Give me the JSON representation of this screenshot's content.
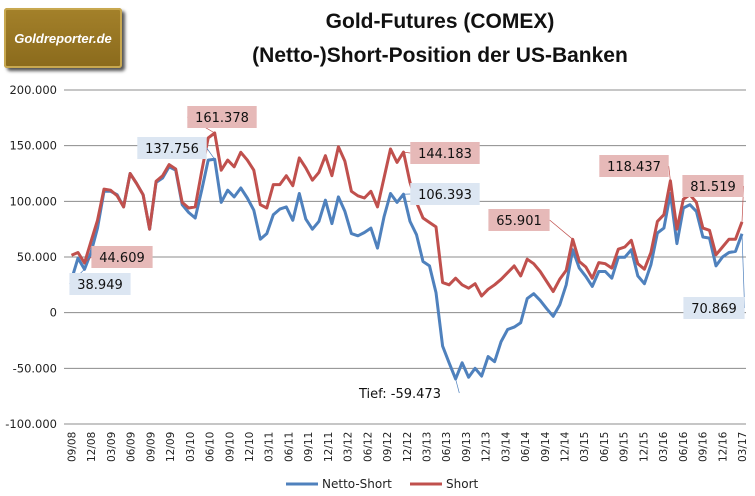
{
  "logo_text": "Goldreporter.de",
  "chart_data": {
    "type": "line",
    "title": [
      "Gold-Futures (COMEX)",
      "(Netto-)Short-Position der US-Banken"
    ],
    "xlabel": "",
    "ylabel": "",
    "ylim": [
      -100000,
      200000
    ],
    "yticks": [
      -100000,
      -50000,
      0,
      50000,
      100000,
      150000,
      200000
    ],
    "ytick_labels": [
      "-100.000",
      "-50.000",
      "0",
      "50.000",
      "100.000",
      "150.000",
      "200.000"
    ],
    "grid": true,
    "legend_position": "bottom",
    "x_tick_labels": [
      "09/08",
      "12/08",
      "03/09",
      "06/09",
      "09/09",
      "12/09",
      "03/10",
      "06/10",
      "09/10",
      "12/10",
      "03/11",
      "06/11",
      "09/11",
      "12/11",
      "03/12",
      "06/12",
      "09/12",
      "12/12",
      "03/13",
      "06/13",
      "09/13",
      "12/13",
      "03/14",
      "06/14",
      "09/14",
      "12/14",
      "03/15",
      "06/15",
      "09/15",
      "12/15",
      "03/16",
      "06/16",
      "09/16",
      "12/16",
      "03/17"
    ],
    "series": [
      {
        "name": "Netto-Short",
        "color": "#4f81bd",
        "values": [
          29600,
          49000,
          38949,
          54000,
          76000,
          109000,
          109000,
          106000,
          95000,
          125000,
          116000,
          106000,
          75000,
          117000,
          121000,
          131000,
          128000,
          97000,
          90000,
          85000,
          110000,
          137000,
          137756,
          99000,
          110000,
          104000,
          112000,
          103000,
          92000,
          66000,
          71000,
          88000,
          93000,
          95000,
          83000,
          107000,
          84000,
          75000,
          82000,
          101000,
          80000,
          104000,
          91000,
          71000,
          69000,
          72000,
          76000,
          58000,
          86000,
          107000,
          99000,
          106393,
          82000,
          70000,
          46000,
          42000,
          18000,
          -30000,
          -45000,
          -59473,
          -45000,
          -58000,
          -50000,
          -57000,
          -39500,
          -44000,
          -26000,
          -15000,
          -13000,
          -9000,
          12600,
          17000,
          11000,
          3600,
          -3300,
          7000,
          25000,
          56600,
          40000,
          32600,
          23600,
          37000,
          37000,
          31000,
          49700,
          49700,
          56600,
          33000,
          26000,
          43000,
          71600,
          76000,
          107000,
          62000,
          94000,
          97000,
          91000,
          68000,
          67000,
          42000,
          50000,
          54000,
          55000,
          70869
        ]
      },
      {
        "name": "Short",
        "color": "#c0504d",
        "values": [
          51500,
          54000,
          44609,
          64000,
          83000,
          111000,
          110000,
          105000,
          95000,
          125000,
          116000,
          106000,
          75000,
          118000,
          123000,
          133000,
          129000,
          99000,
          94000,
          95000,
          127000,
          157000,
          161378,
          128000,
          137000,
          131000,
          144000,
          137000,
          128000,
          97000,
          94000,
          115000,
          115000,
          123000,
          114000,
          139000,
          130000,
          119000,
          126000,
          141000,
          123000,
          149000,
          136000,
          109000,
          105000,
          103000,
          109000,
          95000,
          121000,
          147000,
          135000,
          144183,
          117000,
          99000,
          85000,
          81000,
          77000,
          27000,
          25000,
          31000,
          25000,
          22000,
          26000,
          15000,
          21000,
          25000,
          30000,
          36000,
          42000,
          33000,
          48000,
          44000,
          37000,
          28000,
          19000,
          30000,
          38000,
          65901,
          46000,
          41000,
          31000,
          45000,
          44000,
          40000,
          57000,
          59000,
          65000,
          44000,
          39000,
          54000,
          82000,
          88000,
          118437,
          75000,
          102000,
          106000,
          99000,
          76000,
          74000,
          52000,
          59000,
          66000,
          66000,
          81519
        ]
      }
    ],
    "annotations": [
      {
        "series": 1,
        "index": 2,
        "text": "44.609"
      },
      {
        "series": 0,
        "index": 2,
        "text": "38.949"
      },
      {
        "series": 0,
        "index": 22,
        "text": "137.756"
      },
      {
        "series": 1,
        "index": 22,
        "text": "161.378"
      },
      {
        "series": 1,
        "index": 51,
        "text": "144.183"
      },
      {
        "series": 0,
        "index": 51,
        "text": "106.393"
      },
      {
        "series": 0,
        "index": 59,
        "text": "Tief: -59.473"
      },
      {
        "series": 1,
        "index": 77,
        "text": "65.901"
      },
      {
        "series": 1,
        "index": 92,
        "text": "118.437"
      },
      {
        "series": 1,
        "index": 103,
        "text": "81.519"
      },
      {
        "series": 0,
        "index": 103,
        "text": "70.869"
      }
    ]
  }
}
